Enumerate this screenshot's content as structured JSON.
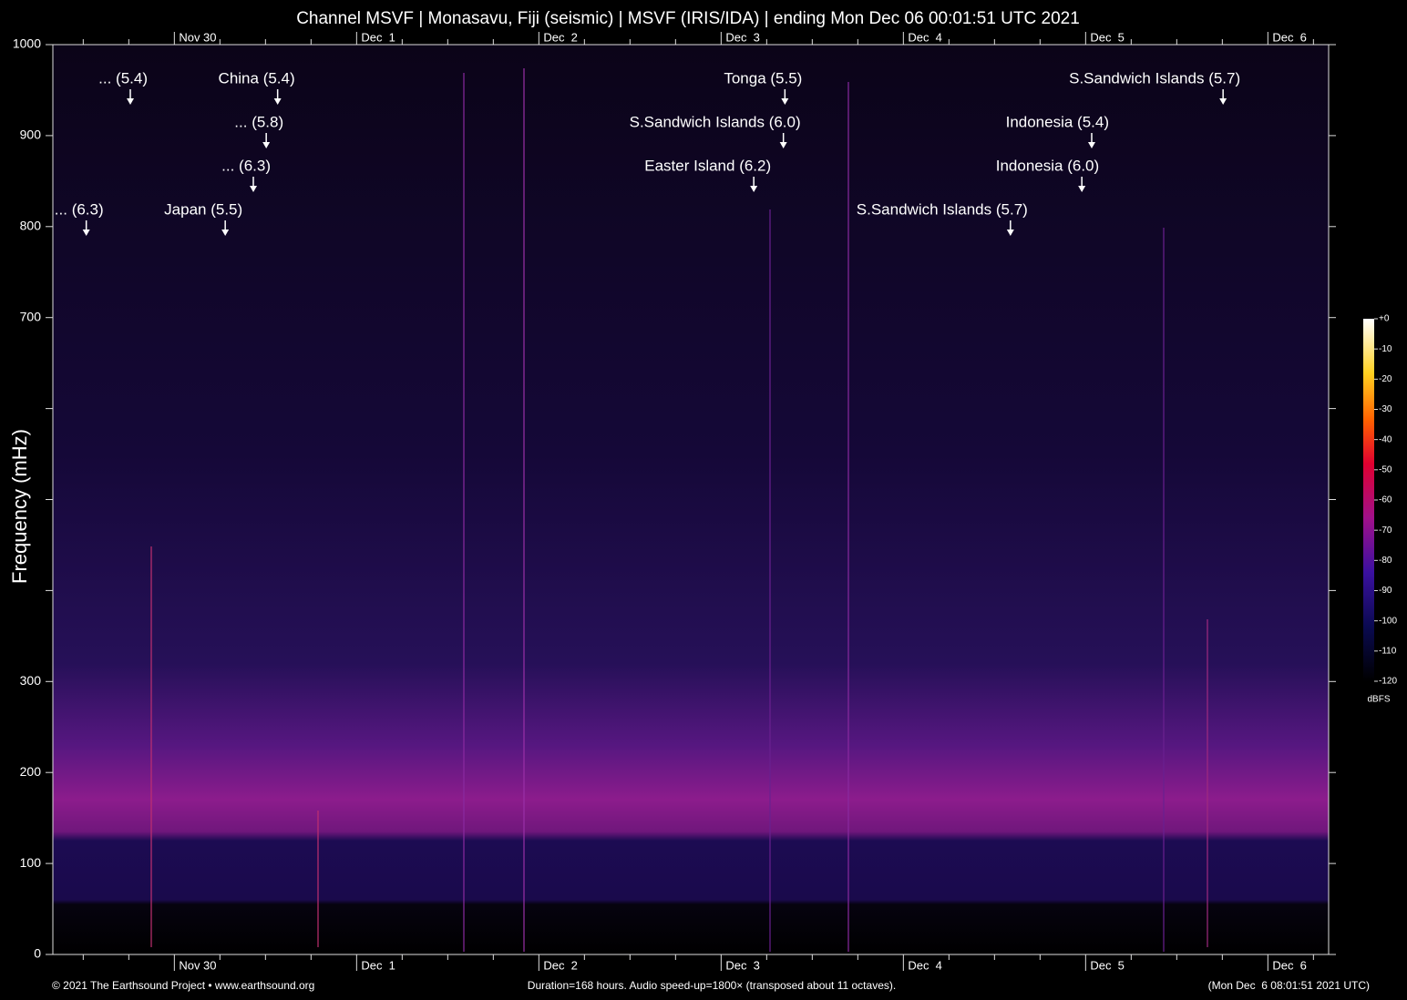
{
  "chart_data": {
    "type": "spectrogram",
    "title": "Channel MSVF | Monasavu, Fiji (seismic) | MSVF (IRIS/IDA) | ending Mon Dec 06 00:01:51 UTC 2021",
    "ylabel": "Frequency (mHz)",
    "xlim": [
      0,
      168
    ],
    "xticks": [
      {
        "value": 16,
        "label": "Nov 30"
      },
      {
        "value": 40,
        "label": "Dec  1"
      },
      {
        "value": 64,
        "label": "Dec  2"
      },
      {
        "value": 88,
        "label": "Dec  3"
      },
      {
        "value": 112,
        "label": "Dec  4"
      },
      {
        "value": 136,
        "label": "Dec  5"
      },
      {
        "value": 160,
        "label": "Dec  6"
      }
    ],
    "xminorticks": [
      4,
      10,
      22,
      28,
      34,
      46,
      52,
      58,
      70,
      76,
      82,
      94,
      100,
      106,
      118,
      124,
      130,
      142,
      148,
      154,
      166
    ],
    "ylim": [
      0,
      1000
    ],
    "yticks": [
      0,
      100,
      200,
      300,
      {
        "value": 400,
        "label": null
      },
      {
        "value": 500,
        "label": null
      },
      {
        "value": 600,
        "label": null
      },
      700,
      800,
      900,
      1000
    ],
    "annotation_rows": [
      [
        {
          "text": "... (5.4)",
          "x": 10.2
        },
        {
          "text": "China (5.4)",
          "x": 29.6
        },
        {
          "text": "Tonga (5.5)",
          "x": 96.4
        },
        {
          "text": "S.Sandwich Islands (5.7)",
          "x": 154.1
        }
      ],
      [
        {
          "text": "... (5.8)",
          "x": 28.1
        },
        {
          "text": "S.Sandwich Islands (6.0)",
          "x": 96.2
        },
        {
          "text": "Indonesia (5.4)",
          "x": 136.8
        }
      ],
      [
        {
          "text": "... (6.3)",
          "x": 26.4
        },
        {
          "text": "Easter Island (6.2)",
          "x": 92.3
        },
        {
          "text": "Indonesia (6.0)",
          "x": 135.5
        }
      ],
      [
        {
          "text": "... (6.3)",
          "x": 4.4
        },
        {
          "text": "Japan (5.5)",
          "x": 22.7
        },
        {
          "text": "S.Sandwich Islands (5.7)",
          "x": 126.1
        }
      ]
    ],
    "colorbar": {
      "label": "dBFS",
      "lim": [
        -120,
        0
      ],
      "ticks": [
        {
          "value": 0,
          "label": "+0"
        },
        -10,
        -20,
        -30,
        -40,
        -50,
        -60,
        -70,
        -80,
        -90,
        -100,
        -110,
        -120
      ]
    },
    "footer_left": "© 2021 The Earthsound Project • www.earthsound.org",
    "footer_center": "Duration=168 hours. Audio speed-up=1800× (transposed about 11 octaves).",
    "footer_right": "(Mon Dec  6 08:01:51 2021 UTC)"
  }
}
